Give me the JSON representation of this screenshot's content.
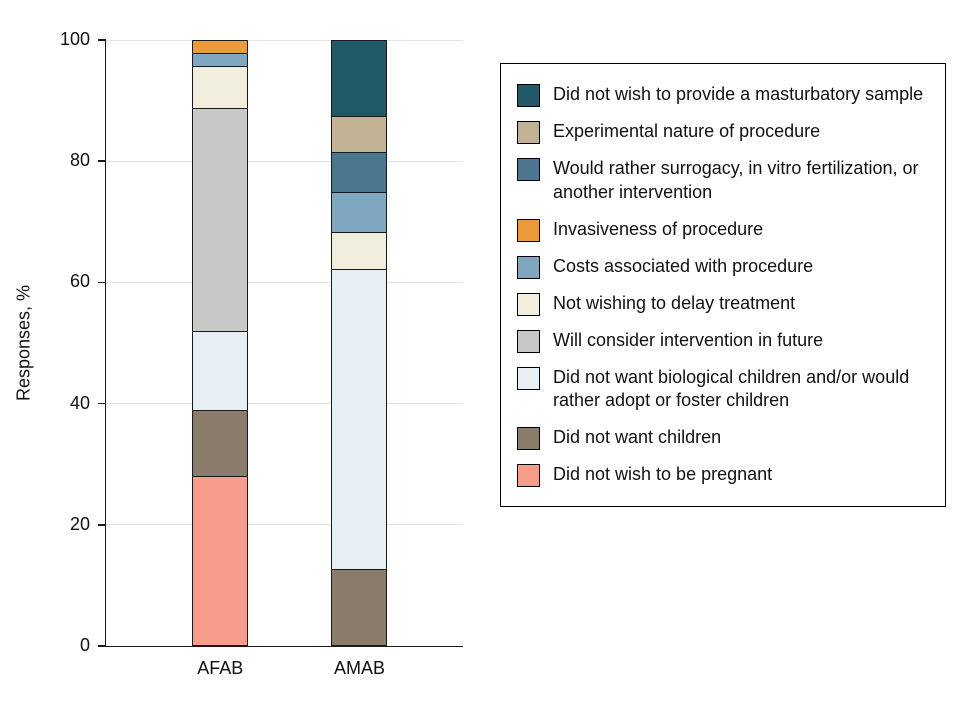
{
  "chart_data": {
    "type": "bar",
    "subtype": "stacked-vertical",
    "title": "",
    "xlabel": "",
    "ylabel": "Responses, %",
    "ylim": [
      0,
      100
    ],
    "yticks": [
      0,
      20,
      40,
      60,
      80,
      100
    ],
    "grid": true,
    "legend_position": "right",
    "categories": [
      "AFAB",
      "AMAB"
    ],
    "series": [
      {
        "name": "Did not wish to provide a masturbatory sample",
        "color": "#215968",
        "values": [
          0,
          12.5
        ]
      },
      {
        "name": "Experimental nature of procedure",
        "color": "#c1b294",
        "values": [
          0,
          6
        ]
      },
      {
        "name": "Would rather surrogacy, in vitro fertilization, or another intervention",
        "color": "#4a768f",
        "values": [
          0,
          6.5
        ]
      },
      {
        "name": "Invasiveness of procedure",
        "color": "#e99a3c",
        "values": [
          2,
          0
        ]
      },
      {
        "name": "Costs associated with procedure",
        "color": "#7fa8c0",
        "values": [
          2,
          6.5
        ]
      },
      {
        "name": "Not wishing to delay treatment",
        "color": "#f1eedd",
        "values": [
          7,
          6
        ]
      },
      {
        "name": "Will consider intervention in future",
        "color": "#c7c9c8",
        "values": [
          37,
          0
        ]
      },
      {
        "name": "Did not want biological children and/or would rather adopt or foster children",
        "color": "#e7eff4",
        "values": [
          13,
          50
        ]
      },
      {
        "name": "Did not want children",
        "color": "#8a7c6a",
        "values": [
          11,
          12.5
        ]
      },
      {
        "name": "Did not wish to be pregnant",
        "color": "#f69d8c",
        "values": [
          28,
          0
        ]
      }
    ],
    "bar_centers_pct": [
      32,
      71
    ]
  }
}
